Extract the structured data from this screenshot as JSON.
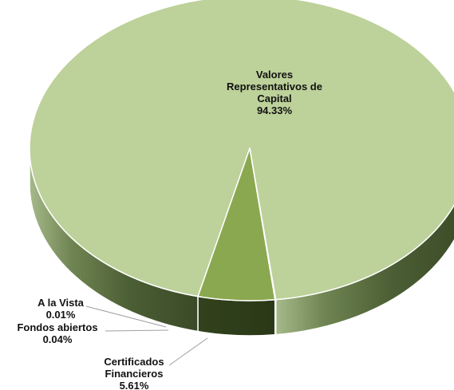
{
  "chart_data": {
    "type": "pie",
    "style": "3d",
    "title": "",
    "slices": [
      {
        "name": "Valores Representativos de Capital",
        "label_lines": [
          "Valores",
          "Representativos de",
          "Capital"
        ],
        "value": 94.33,
        "percent_label": "94.33%",
        "color": "#bdd19a"
      },
      {
        "name": "A la Vista",
        "label_lines": [
          "A la Vista"
        ],
        "value": 0.01,
        "percent_label": "0.01%",
        "color": "#b9cc93"
      },
      {
        "name": "Fondos abiertos",
        "label_lines": [
          "Fondos abiertos"
        ],
        "value": 0.04,
        "percent_label": "0.04%",
        "color": "#a9c07c"
      },
      {
        "name": "Certificados Financieros",
        "label_lines": [
          "Certificados",
          "Financieros"
        ],
        "value": 5.61,
        "percent_label": "5.61%",
        "color": "#8aa84f"
      }
    ],
    "legend": "none"
  }
}
